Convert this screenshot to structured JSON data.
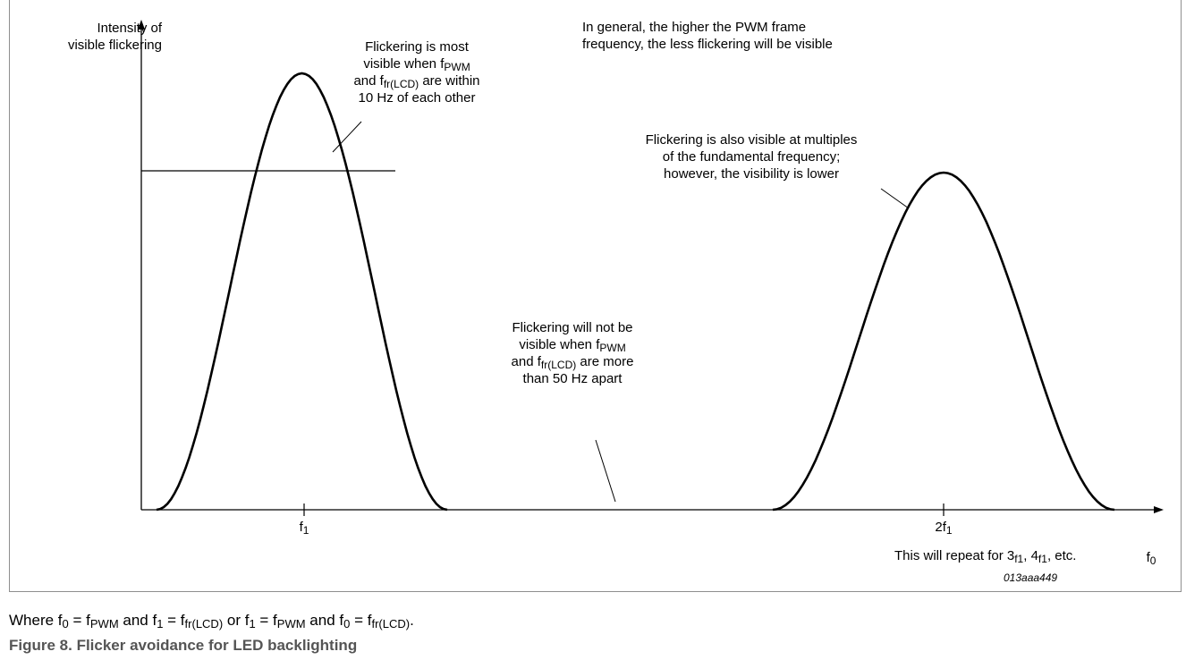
{
  "y_axis_label": {
    "line1": "Intensity of",
    "line2": "visible flickering"
  },
  "x_axis_label": {
    "base": "f",
    "sub": "0"
  },
  "ticks": {
    "f1": {
      "base": "f",
      "sub": "1"
    },
    "f2": {
      "base": "2f",
      "sub": "1"
    }
  },
  "general_note": {
    "line1": "In general, the higher the PWM frame",
    "line2": "frequency, the less flickering will be visible"
  },
  "peak1_note": {
    "line1": "Flickering is most",
    "line2_pre": "visible when f",
    "line2_sub": "PWM",
    "line3_pre": "and f",
    "line3_sub": "fr(LCD)",
    "line3_post": " are within",
    "line4": "10 Hz of each other"
  },
  "peak2_note": {
    "line1": "Flickering is also visible at multiples",
    "line2": "of the fundamental frequency;",
    "line3": "however, the visibility is lower"
  },
  "gap_note": {
    "line1": "Flickering will not be",
    "line2_pre": "visible when f",
    "line2_sub": "PWM",
    "line3_pre": "and f",
    "line3_sub": "fr(LCD)",
    "line3_post": " are more",
    "line4": "than 50 Hz apart"
  },
  "repeat_note": {
    "pre": "This will repeat for 3",
    "sub1": "f1",
    "mid": ", 4",
    "sub2": "f1",
    "post": ", etc."
  },
  "document_id": "013aaa449",
  "where_line": {
    "t1": "Where f",
    "s1": "0",
    "t2": " = f",
    "s2": "PWM",
    "t3": " and f",
    "s3": "1",
    "t4": " = f",
    "s4": "fr(LCD)",
    "t5": " or f",
    "s5": "1",
    "t6": " = f",
    "s6": "PWM",
    "t7": " and f",
    "s7": "0",
    "t8": " = f",
    "s8": "fr(LCD)",
    "t9": "."
  },
  "caption": "Figure 8.  Flicker avoidance for LED backlighting",
  "colors": {
    "line": "#000000",
    "frame": "#8f8f8f",
    "caption": "#555555"
  }
}
